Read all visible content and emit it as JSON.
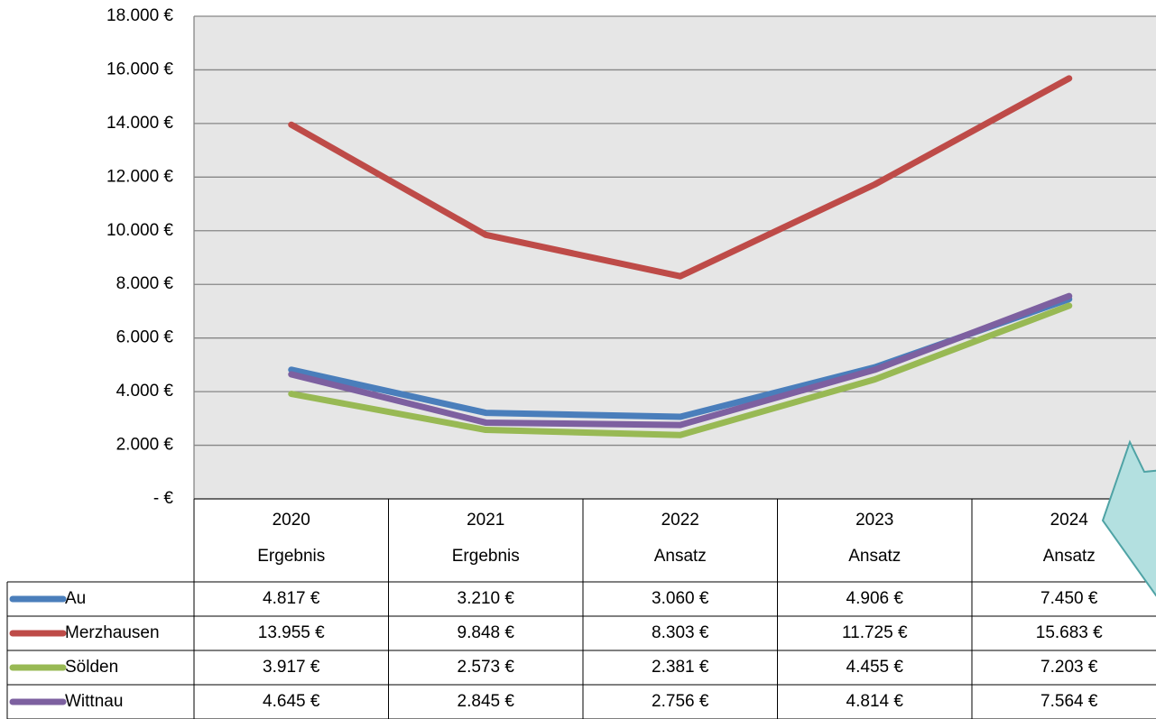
{
  "chart_data": {
    "type": "line",
    "categories": [
      "2020",
      "2021",
      "2022",
      "2023",
      "2024"
    ],
    "category_sublabels": [
      "Ergebnis",
      "Ergebnis",
      "Ansatz",
      "Ansatz",
      "Ansatz"
    ],
    "series": [
      {
        "name": "Au",
        "color": "#4a7ebb",
        "values": [
          4817,
          3210,
          3060,
          4906,
          7450
        ],
        "value_labels": [
          "4.817 €",
          "3.210 €",
          "3.060 €",
          "4.906 €",
          "7.450 €"
        ]
      },
      {
        "name": "Merzhausen",
        "color": "#be4b48",
        "values": [
          13955,
          9848,
          8303,
          11725,
          15683
        ],
        "value_labels": [
          "13.955 €",
          "9.848 €",
          "8.303 €",
          "11.725 €",
          "15.683 €"
        ]
      },
      {
        "name": "Sölden",
        "color": "#98b954",
        "values": [
          3917,
          2573,
          2381,
          4455,
          7203
        ],
        "value_labels": [
          "3.917 €",
          "2.573 €",
          "2.381 €",
          "4.455 €",
          "7.203 €"
        ]
      },
      {
        "name": "Wittnau",
        "color": "#7d60a0",
        "values": [
          4645,
          2845,
          2756,
          4814,
          7564
        ],
        "value_labels": [
          "4.645 €",
          "2.845 €",
          "2.756 €",
          "4.814 €",
          "7.564 €"
        ]
      }
    ],
    "ylim": [
      0,
      18000
    ],
    "yticks": [
      {
        "value": 0,
        "label": "- €"
      },
      {
        "value": 2000,
        "label": "2.000 €"
      },
      {
        "value": 4000,
        "label": "4.000 €"
      },
      {
        "value": 6000,
        "label": "6.000 €"
      },
      {
        "value": 8000,
        "label": "8.000 €"
      },
      {
        "value": 10000,
        "label": "10.000 €"
      },
      {
        "value": 12000,
        "label": "12.000 €"
      },
      {
        "value": 14000,
        "label": "14.000 €"
      },
      {
        "value": 16000,
        "label": "16.000 €"
      },
      {
        "value": 18000,
        "label": "18.000 €"
      }
    ],
    "grid": true
  }
}
